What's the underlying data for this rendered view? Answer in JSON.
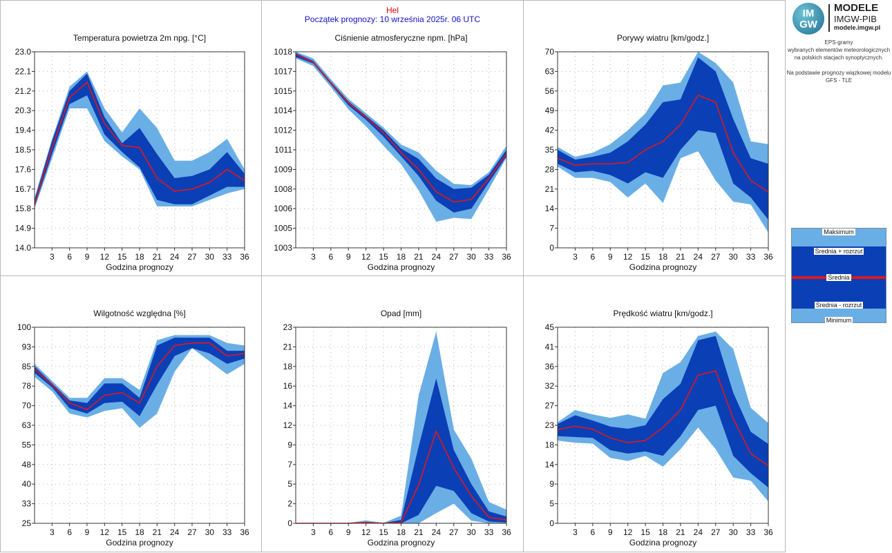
{
  "header": {
    "location": "Hel",
    "forecast_start": "Początek prognozy: 10 września 2025r. 06 UTC"
  },
  "sidebar": {
    "logo_top": "IM",
    "logo_bottom": "GW",
    "brand": "MODELE",
    "org": "IMGW-PIB",
    "url": "modele.imgw.pl",
    "description": [
      "EPS-gramy",
      "wybranych elementów meteorologicznych",
      "na polskich stacjach  synoptycznych.",
      "",
      "Na podstawie prognozy wiązkowej modelu",
      "GFS - TLE"
    ]
  },
  "legend": {
    "items": [
      "Maksimum",
      "Średnia + rozrzut",
      "Średnia",
      "Średnia - rozrzut",
      "Minimum"
    ],
    "colors": {
      "light": "#6aaee6",
      "dark": "#0b3fb6",
      "mean": "#e01818"
    }
  },
  "chart_data": [
    {
      "type": "area",
      "title": "Temperatura powietrza 2m npg. [°C]",
      "xlabel": "Godzina prognozy",
      "x": [
        0,
        3,
        6,
        9,
        12,
        15,
        18,
        21,
        24,
        27,
        30,
        33,
        36
      ],
      "xticks": [
        "3",
        "6",
        "9",
        "12",
        "15",
        "18",
        "21",
        "24",
        "27",
        "30",
        "33",
        "36"
      ],
      "ylim": [
        14.0,
        23.0
      ],
      "yticks": [
        "14.0",
        "14.9",
        "15.8",
        "16.7",
        "17.6",
        "18.5",
        "19.4",
        "20.3",
        "21.2",
        "22.1",
        "23.0"
      ],
      "series": {
        "max": [
          16.3,
          19.0,
          21.4,
          22.1,
          20.4,
          19.3,
          20.4,
          19.5,
          18.0,
          18.0,
          18.4,
          19.0,
          17.6
        ],
        "mean_plus": [
          16.2,
          18.9,
          21.2,
          22.0,
          20.0,
          18.8,
          19.5,
          18.3,
          17.2,
          17.3,
          17.6,
          18.4,
          17.4
        ],
        "mean": [
          16.0,
          18.6,
          20.9,
          21.6,
          19.7,
          18.7,
          18.6,
          17.2,
          16.6,
          16.7,
          17.0,
          17.6,
          17.1
        ],
        "mean_minus": [
          15.9,
          18.3,
          20.6,
          21.0,
          19.2,
          18.4,
          17.7,
          16.2,
          16.0,
          16.0,
          16.4,
          16.8,
          16.8
        ],
        "min": [
          15.8,
          18.1,
          20.4,
          20.4,
          18.9,
          18.2,
          17.6,
          15.9,
          15.9,
          15.9,
          16.2,
          16.5,
          16.7
        ]
      }
    },
    {
      "type": "area",
      "title": "Ciśnienie atmosferyczne npm. [hPa]",
      "xlabel": "Godzina prognozy",
      "x": [
        0,
        3,
        6,
        9,
        12,
        15,
        18,
        21,
        24,
        27,
        30,
        33,
        36
      ],
      "xticks": [
        "3",
        "6",
        "9",
        "12",
        "15",
        "18",
        "21",
        "24",
        "27",
        "30",
        "33",
        "36"
      ],
      "ylim": [
        1003,
        1018
      ],
      "yticks": [
        "1003",
        "1005",
        "1006",
        "1008",
        "1009",
        "1011",
        "1012",
        "1014",
        "1015",
        "1017",
        "1018"
      ],
      "series": {
        "max": [
          1018.0,
          1017.5,
          1015.9,
          1014.4,
          1013.3,
          1012.2,
          1010.9,
          1010.3,
          1008.9,
          1007.9,
          1007.8,
          1008.8,
          1010.8
        ],
        "mean_plus": [
          1017.9,
          1017.3,
          1015.7,
          1014.2,
          1013.1,
          1012.0,
          1010.6,
          1009.8,
          1008.3,
          1007.5,
          1007.6,
          1008.6,
          1010.5
        ],
        "mean": [
          1017.8,
          1017.2,
          1015.6,
          1014.1,
          1013.0,
          1011.8,
          1010.3,
          1009.0,
          1007.3,
          1006.5,
          1006.7,
          1008.3,
          1010.2
        ],
        "mean_minus": [
          1017.6,
          1017.1,
          1015.5,
          1013.9,
          1012.8,
          1011.5,
          1010.0,
          1008.5,
          1006.6,
          1005.7,
          1006.0,
          1008.0,
          1010.0
        ],
        "min": [
          1017.5,
          1016.9,
          1015.3,
          1013.6,
          1012.3,
          1010.8,
          1009.4,
          1007.4,
          1005.0,
          1005.3,
          1005.2,
          1007.5,
          1009.9
        ]
      }
    },
    {
      "type": "area",
      "title": "Porywy wiatru [km/godz.]",
      "xlabel": "Godzina prognozy",
      "x": [
        0,
        3,
        6,
        9,
        12,
        15,
        18,
        21,
        24,
        27,
        30,
        33,
        36
      ],
      "xticks": [
        "3",
        "6",
        "9",
        "12",
        "15",
        "18",
        "21",
        "24",
        "27",
        "30",
        "33",
        "36"
      ],
      "ylim": [
        0,
        70
      ],
      "yticks": [
        "0",
        "7",
        "14",
        "21",
        "28",
        "35",
        "42",
        "49",
        "56",
        "63",
        "70"
      ],
      "series": {
        "max": [
          36,
          32.5,
          34,
          37,
          42,
          48,
          58,
          59,
          70,
          66,
          59,
          38,
          37
        ],
        "mean_plus": [
          35,
          31.5,
          32.5,
          34,
          38,
          44,
          52,
          53,
          68,
          63,
          46,
          32,
          30
        ],
        "mean": [
          32,
          29.5,
          30,
          30,
          30.5,
          35,
          38,
          44,
          54.5,
          52,
          34,
          24,
          20
        ],
        "mean_minus": [
          30,
          27,
          27.5,
          26,
          23,
          27,
          25,
          35,
          42,
          41,
          23,
          18,
          10
        ],
        "min": [
          29,
          25,
          25,
          23.5,
          18,
          23,
          16,
          32,
          34.5,
          24,
          16.5,
          15.5,
          5.5
        ]
      }
    },
    {
      "type": "area",
      "title": "Wilgotność względna [%]",
      "xlabel": "Godzina prognozy",
      "x": [
        0,
        3,
        6,
        9,
        12,
        15,
        18,
        21,
        24,
        27,
        30,
        33,
        36
      ],
      "xticks": [
        "3",
        "6",
        "9",
        "12",
        "15",
        "18",
        "21",
        "24",
        "27",
        "30",
        "33",
        "36"
      ],
      "ylim": [
        25,
        100
      ],
      "yticks": [
        "25",
        "33",
        "40",
        "48",
        "55",
        "63",
        "70",
        "78",
        "85",
        "93",
        "100"
      ],
      "series": {
        "max": [
          86,
          79.5,
          73,
          73,
          80.5,
          80.5,
          76,
          95,
          97,
          97,
          97,
          94,
          93
        ],
        "mean_plus": [
          85,
          78.5,
          72,
          71,
          78.5,
          78.5,
          73,
          93,
          96,
          96,
          96,
          91,
          91
        ],
        "mean": [
          84,
          78,
          71,
          68.5,
          74,
          75,
          71,
          85,
          93,
          94,
          94,
          89,
          90
        ],
        "mean_minus": [
          82.5,
          77,
          69,
          67,
          71,
          71.5,
          66,
          78,
          89,
          92,
          90,
          86,
          88
        ],
        "min": [
          81,
          75.5,
          67,
          65.5,
          68,
          69,
          61.5,
          67,
          83,
          92,
          87,
          82,
          86
        ]
      }
    },
    {
      "type": "area",
      "title": "Opad [mm]",
      "xlabel": "Godzina prognozy",
      "x": [
        0,
        3,
        6,
        9,
        12,
        15,
        18,
        21,
        24,
        27,
        30,
        33,
        36
      ],
      "xticks": [
        "3",
        "6",
        "9",
        "12",
        "15",
        "18",
        "21",
        "24",
        "27",
        "30",
        "33",
        "36"
      ],
      "ylim": [
        0,
        23
      ],
      "yticks": [
        "0",
        "2",
        "5",
        "7",
        "9",
        "12",
        "14",
        "16",
        "18",
        "21",
        "23"
      ],
      "series": {
        "max": [
          0.05,
          0.05,
          0.05,
          0.05,
          0.35,
          0.05,
          0.9,
          15.0,
          22.5,
          11.0,
          7.6,
          2.5,
          1.6
        ],
        "mean_plus": [
          0.02,
          0.02,
          0.02,
          0.02,
          0.15,
          0.02,
          0.4,
          9.0,
          17.0,
          8.6,
          4.6,
          1.4,
          0.8
        ],
        "mean": [
          0.0,
          0.0,
          0.0,
          0.0,
          0.1,
          0.0,
          0.1,
          4.5,
          10.8,
          6.5,
          3.2,
          0.7,
          0.4
        ],
        "mean_minus": [
          0.0,
          0.0,
          0.0,
          0.0,
          0.0,
          0.0,
          0.0,
          1.0,
          4.4,
          3.8,
          1.2,
          0.2,
          0.1
        ],
        "min": [
          0.0,
          0.0,
          0.0,
          0.0,
          0.0,
          0.0,
          0.0,
          0.0,
          1.2,
          2.3,
          0.3,
          0.0,
          0.0
        ]
      }
    },
    {
      "type": "area",
      "title": "Prędkość wiatru [km/godz.]",
      "xlabel": "Godzina prognozy",
      "x": [
        0,
        3,
        6,
        9,
        12,
        15,
        18,
        21,
        24,
        27,
        30,
        33,
        36
      ],
      "xticks": [
        "3",
        "6",
        "9",
        "12",
        "15",
        "18",
        "21",
        "24",
        "27",
        "30",
        "33",
        "36"
      ],
      "ylim": [
        0,
        45
      ],
      "yticks": [
        "0",
        "5",
        "9",
        "14",
        "18",
        "23",
        "27",
        "32",
        "36",
        "41",
        "45"
      ],
      "series": {
        "max": [
          23.2,
          26.0,
          25.0,
          24.2,
          25.0,
          24.0,
          34.5,
          37.0,
          43.0,
          44.0,
          40.0,
          26.5,
          23.0
        ],
        "mean_plus": [
          22.8,
          24.8,
          23.6,
          22.2,
          21.7,
          22.5,
          28.5,
          32.0,
          42.0,
          43.0,
          30.0,
          21.0,
          18.2
        ],
        "mean": [
          21.5,
          22.3,
          21.6,
          19.6,
          18.5,
          19.0,
          22.0,
          26.0,
          34.0,
          35.0,
          24.0,
          16.0,
          13.2
        ],
        "mean_minus": [
          20.0,
          19.8,
          19.6,
          16.8,
          16.0,
          16.5,
          15.5,
          20.0,
          26.0,
          27.0,
          15.5,
          11.5,
          8.2
        ],
        "min": [
          19.0,
          18.5,
          18.3,
          15.0,
          14.3,
          15.5,
          13.0,
          17.0,
          22.0,
          17.0,
          10.5,
          9.8,
          5.0
        ]
      }
    }
  ]
}
